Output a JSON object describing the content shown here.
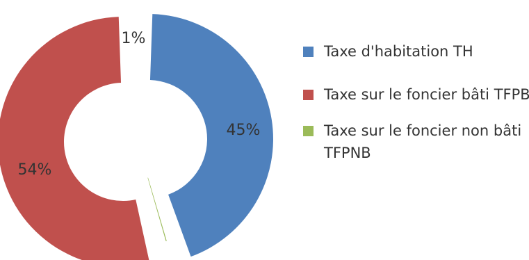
{
  "chart_data": {
    "type": "pie",
    "donut": true,
    "exploded": true,
    "title": "",
    "legend_position": "right",
    "slices": [
      {
        "label": "Taxe d'habitation TH",
        "value": 45,
        "value_label": "45%",
        "color": "#4F81BD"
      },
      {
        "label": "Taxe sur le foncier non bâti TFPNB",
        "value": 1,
        "value_label": "1%",
        "color": "#9BBB59"
      },
      {
        "label": "Taxe sur le foncier bâti TFPB",
        "value": 54,
        "value_label": "54%",
        "color": "#C0504D"
      }
    ]
  },
  "legend": {
    "items": [
      {
        "label": "Taxe d'habitation TH",
        "color": "#4F81BD"
      },
      {
        "label": "Taxe sur le foncier bâti TFPB",
        "color": "#C0504D"
      },
      {
        "label": "Taxe sur le foncier non bâti TFPNB",
        "color": "#9BBB59"
      }
    ]
  }
}
